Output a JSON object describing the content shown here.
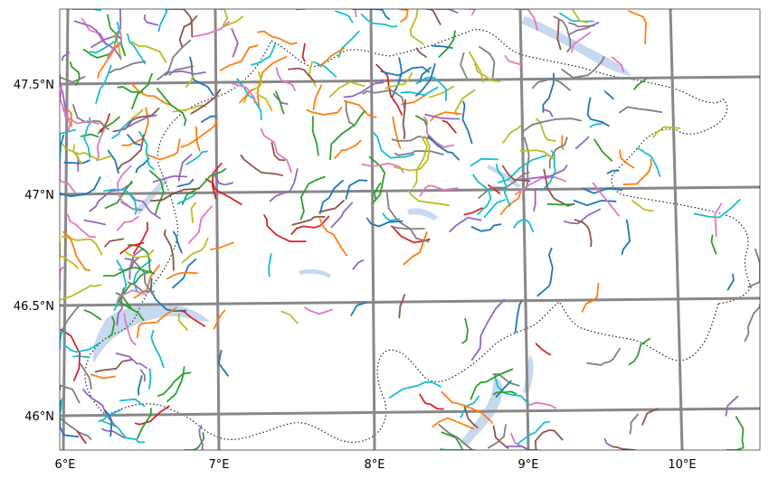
{
  "map": {
    "lat_labels": [
      "47.5°N",
      "47°N",
      "46.5°N",
      "46°N"
    ],
    "lon_labels": [
      "6°E",
      "7°E",
      "8°E",
      "9°E",
      "10°E"
    ],
    "gridline_color": "#888888",
    "lake_color": "#c6d9ef",
    "border_color": "#222222"
  },
  "track_palette": [
    "#1f77b4",
    "#ff7f0e",
    "#2ca02c",
    "#d62728",
    "#9467bd",
    "#8c564b",
    "#e377c2",
    "#7f7f7f",
    "#bcbd22",
    "#17becf"
  ]
}
